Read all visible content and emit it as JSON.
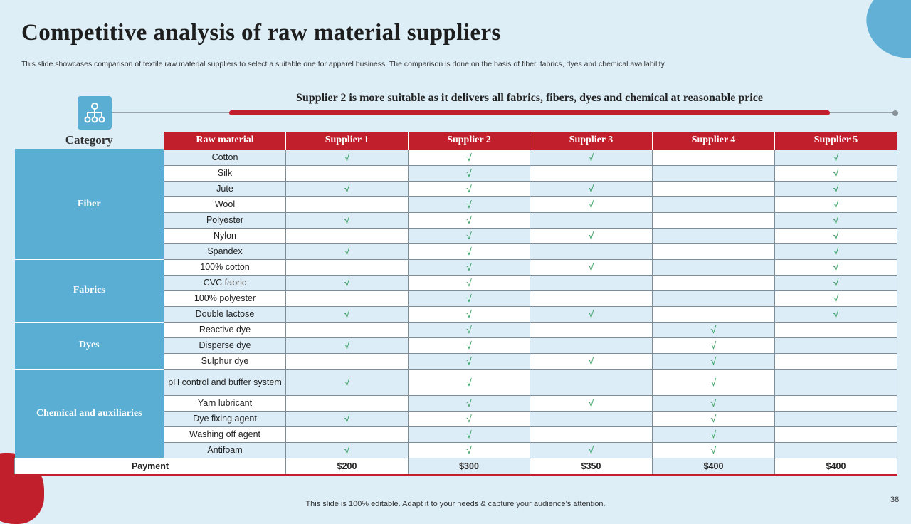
{
  "title": "Competitive analysis of raw material suppliers",
  "subtitle": "This slide showcases comparison of textile raw material suppliers to select a suitable one for apparel business. The comparison is done on the basis of fiber, fabrics, dyes and chemical availability.",
  "highlight": "Supplier 2 is more suitable as it delivers all fabrics, fibers, dyes and chemical at reasonable price",
  "icon": "hierarchy-icon",
  "check_glyph": "√",
  "colors": {
    "accent_red": "#c11f2c",
    "accent_blue": "#5aaed3",
    "background": "#deeef7",
    "check": "#2f9e5a"
  },
  "table": {
    "category_header": "Category",
    "raw_material_header": "Raw material",
    "supplier_headers": [
      "Supplier 1",
      "Supplier 2",
      "Supplier 3",
      "Supplier 4",
      "Supplier 5"
    ],
    "groups": [
      {
        "name": "Fiber",
        "rows": [
          {
            "material": "Cotton",
            "checks": [
              true,
              true,
              true,
              false,
              true
            ]
          },
          {
            "material": "Silk",
            "checks": [
              false,
              true,
              false,
              false,
              true
            ]
          },
          {
            "material": "Jute",
            "checks": [
              true,
              true,
              true,
              false,
              true
            ]
          },
          {
            "material": "Wool",
            "checks": [
              false,
              true,
              true,
              false,
              true
            ]
          },
          {
            "material": "Polyester",
            "checks": [
              true,
              true,
              false,
              false,
              true
            ]
          },
          {
            "material": "Nylon",
            "checks": [
              false,
              true,
              true,
              false,
              true
            ]
          },
          {
            "material": "Spandex",
            "checks": [
              true,
              true,
              false,
              false,
              true
            ]
          }
        ]
      },
      {
        "name": "Fabrics",
        "rows": [
          {
            "material": "100% cotton",
            "checks": [
              false,
              true,
              true,
              false,
              true
            ]
          },
          {
            "material": "CVC fabric",
            "checks": [
              true,
              true,
              false,
              false,
              true
            ]
          },
          {
            "material": "100% polyester",
            "checks": [
              false,
              true,
              false,
              false,
              true
            ]
          },
          {
            "material": "Double lactose",
            "checks": [
              true,
              true,
              true,
              false,
              true
            ]
          }
        ]
      },
      {
        "name": "Dyes",
        "rows": [
          {
            "material": "Reactive dye",
            "checks": [
              false,
              true,
              false,
              true,
              false
            ]
          },
          {
            "material": "Disperse dye",
            "checks": [
              true,
              true,
              false,
              true,
              false
            ]
          },
          {
            "material": "Sulphur dye",
            "checks": [
              false,
              true,
              true,
              true,
              false
            ]
          }
        ]
      },
      {
        "name": "Chemical and auxiliaries",
        "rows": [
          {
            "material": "pH control and buffer system",
            "checks": [
              true,
              true,
              false,
              true,
              false
            ]
          },
          {
            "material": "Yarn lubricant",
            "checks": [
              false,
              true,
              true,
              true,
              false
            ]
          },
          {
            "material": "Dye fixing agent",
            "checks": [
              true,
              true,
              false,
              true,
              false
            ]
          },
          {
            "material": "Washing off agent",
            "checks": [
              false,
              true,
              false,
              true,
              false
            ]
          },
          {
            "material": "Antifoam",
            "checks": [
              true,
              true,
              true,
              true,
              false
            ]
          }
        ]
      }
    ],
    "payment_label": "Payment",
    "payments": [
      "$200",
      "$300",
      "$350",
      "$400",
      "$400"
    ]
  },
  "footer": "This slide is 100% editable. Adapt it to your needs & capture your audience’s attention.",
  "page_number": "38"
}
